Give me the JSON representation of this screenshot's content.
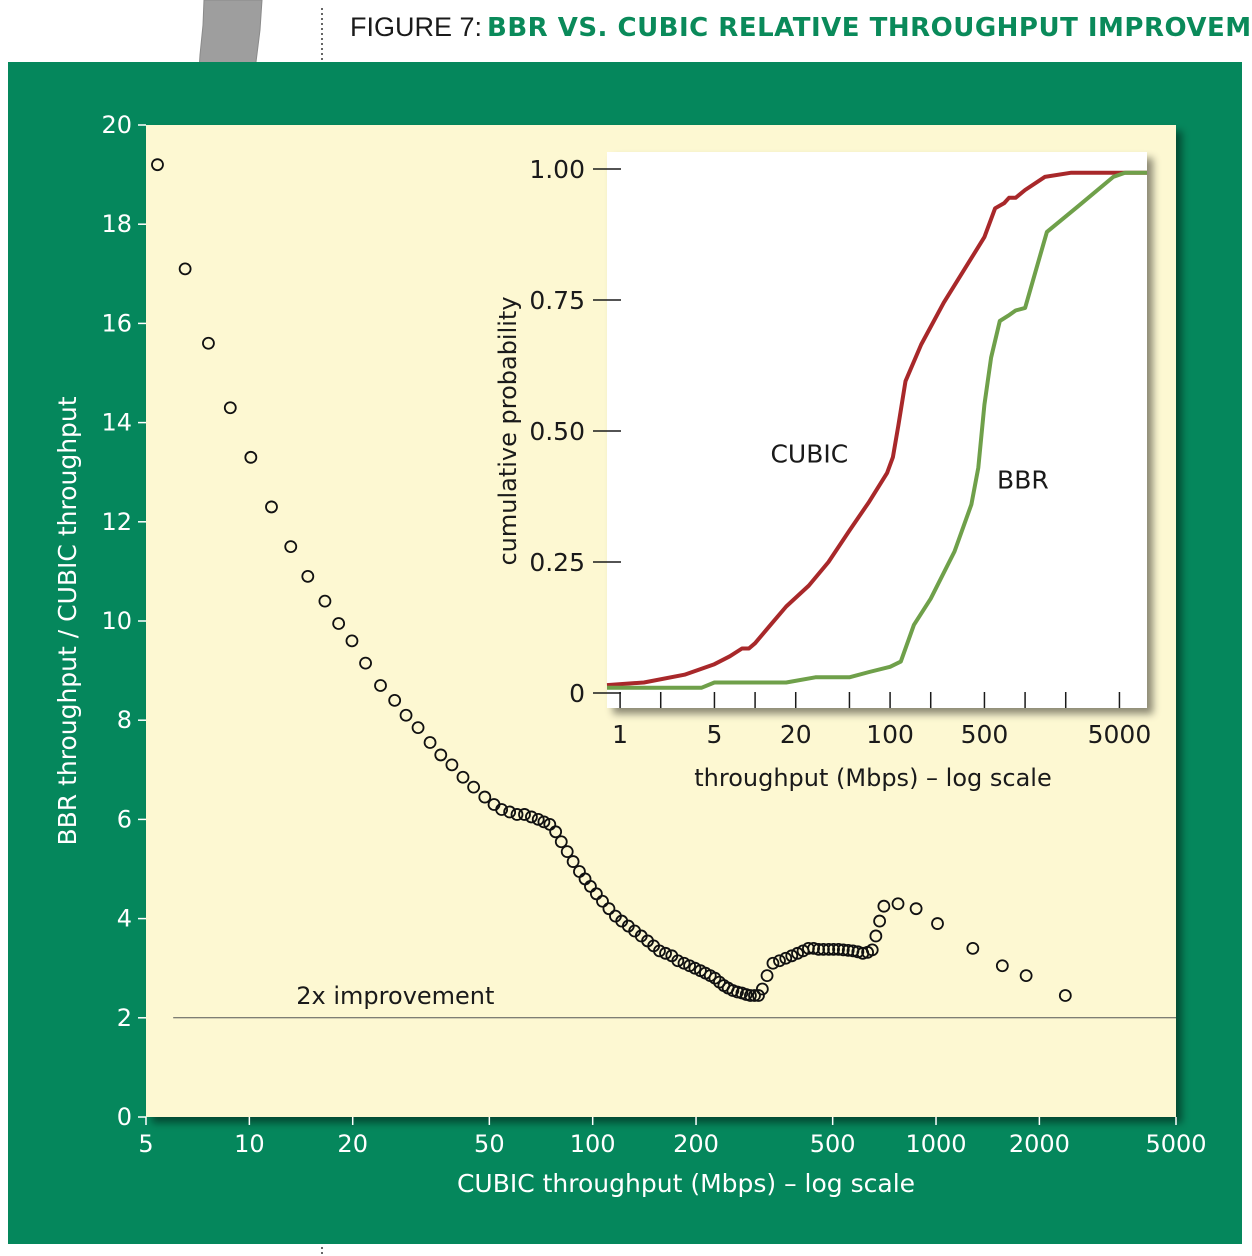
{
  "figure": {
    "label": "FIGURE 7:",
    "title": "BBR VS. CUBIC RELATIVE THROUGHPUT IMPROVEMENT"
  },
  "colors": {
    "frame": "#05875c",
    "plot_bg": "#fdf8d2",
    "title": "#0a8a5a",
    "cubic": "#a8282a",
    "bbr": "#6fa04a"
  },
  "chart_data": [
    {
      "type": "scatter",
      "xlabel": "CUBIC throughput (Mbps) – log scale",
      "ylabel": "BBR throughput / CUBIC throughput",
      "x_scale": "log",
      "xlim": [
        5,
        5000
      ],
      "ylim": [
        0,
        20
      ],
      "x_ticks": [
        5,
        10,
        20,
        50,
        100,
        200,
        500,
        1000,
        2000,
        5000
      ],
      "x_tick_labels": [
        "5",
        "10",
        "20",
        "50",
        "100",
        "200",
        "500",
        "1000",
        "2000",
        "5000"
      ],
      "y_ticks": [
        0,
        2,
        4,
        6,
        8,
        10,
        12,
        14,
        16,
        18,
        20
      ],
      "y_tick_labels": [
        "0",
        "2",
        "4",
        "6",
        "8",
        "10",
        "12",
        "14",
        "16",
        "18",
        "20"
      ],
      "reference_line": {
        "y": 2,
        "label": "2x improvement"
      },
      "points": [
        [
          5.4,
          19.2
        ],
        [
          6.5,
          17.1
        ],
        [
          7.6,
          15.6
        ],
        [
          8.8,
          14.3
        ],
        [
          10.1,
          13.3
        ],
        [
          11.6,
          12.3
        ],
        [
          13.2,
          11.5
        ],
        [
          14.8,
          10.9
        ],
        [
          16.6,
          10.4
        ],
        [
          18.2,
          9.95
        ],
        [
          19.9,
          9.6
        ],
        [
          21.8,
          9.15
        ],
        [
          24.1,
          8.7
        ],
        [
          26.5,
          8.4
        ],
        [
          28.6,
          8.1
        ],
        [
          31.0,
          7.85
        ],
        [
          33.6,
          7.55
        ],
        [
          36.1,
          7.3
        ],
        [
          38.9,
          7.1
        ],
        [
          41.9,
          6.85
        ],
        [
          45.0,
          6.65
        ],
        [
          48.5,
          6.45
        ],
        [
          51.6,
          6.3
        ],
        [
          54.3,
          6.2
        ],
        [
          57.3,
          6.15
        ],
        [
          60.2,
          6.1
        ],
        [
          63.3,
          6.1
        ],
        [
          66.3,
          6.05
        ],
        [
          69.4,
          6.0
        ],
        [
          72.1,
          5.95
        ],
        [
          75.0,
          5.9
        ],
        [
          78.0,
          5.75
        ],
        [
          81.0,
          5.55
        ],
        [
          84.3,
          5.35
        ],
        [
          87.7,
          5.15
        ],
        [
          91.5,
          4.95
        ],
        [
          95.0,
          4.8
        ],
        [
          98.5,
          4.65
        ],
        [
          102.5,
          4.5
        ],
        [
          106.8,
          4.35
        ],
        [
          111.5,
          4.2
        ],
        [
          116.5,
          4.05
        ],
        [
          121.5,
          3.95
        ],
        [
          127.0,
          3.85
        ],
        [
          132.5,
          3.75
        ],
        [
          138.5,
          3.65
        ],
        [
          144.5,
          3.55
        ],
        [
          150.5,
          3.45
        ],
        [
          156.5,
          3.35
        ],
        [
          163.0,
          3.3
        ],
        [
          170.0,
          3.25
        ],
        [
          177.0,
          3.15
        ],
        [
          184.5,
          3.1
        ],
        [
          191.5,
          3.05
        ],
        [
          198.5,
          3.0
        ],
        [
          206.0,
          2.95
        ],
        [
          213.0,
          2.9
        ],
        [
          220.0,
          2.85
        ],
        [
          227.0,
          2.8
        ],
        [
          234.0,
          2.72
        ],
        [
          241.0,
          2.65
        ],
        [
          248.0,
          2.6
        ],
        [
          256.0,
          2.55
        ],
        [
          264.0,
          2.52
        ],
        [
          272.0,
          2.5
        ],
        [
          280.0,
          2.47
        ],
        [
          288.0,
          2.45
        ],
        [
          296.0,
          2.45
        ],
        [
          304.0,
          2.45
        ],
        [
          312.0,
          2.58
        ],
        [
          322.0,
          2.85
        ],
        [
          335.0,
          3.1
        ],
        [
          350.0,
          3.15
        ],
        [
          365.0,
          3.2
        ],
        [
          380.0,
          3.25
        ],
        [
          395.0,
          3.3
        ],
        [
          410.0,
          3.35
        ],
        [
          425.0,
          3.4
        ],
        [
          440.0,
          3.4
        ],
        [
          455.0,
          3.38
        ],
        [
          470.0,
          3.38
        ],
        [
          487.0,
          3.38
        ],
        [
          503.0,
          3.38
        ],
        [
          520.0,
          3.38
        ],
        [
          537.0,
          3.37
        ],
        [
          555.0,
          3.36
        ],
        [
          573.0,
          3.35
        ],
        [
          592.0,
          3.33
        ],
        [
          612.0,
          3.3
        ],
        [
          632.0,
          3.32
        ],
        [
          652.0,
          3.37
        ],
        [
          668.0,
          3.65
        ],
        [
          685.0,
          3.95
        ],
        [
          705.0,
          4.25
        ],
        [
          775.0,
          4.3
        ],
        [
          875.0,
          4.2
        ],
        [
          1010.0,
          3.9
        ],
        [
          1280.0,
          3.4
        ],
        [
          1560.0,
          3.05
        ],
        [
          1830.0,
          2.85
        ],
        [
          2380.0,
          2.45
        ]
      ]
    },
    {
      "type": "line",
      "xlabel": "throughput (Mbps) – log scale",
      "ylabel": "cumulative probability",
      "x_scale": "log",
      "xlim": [
        0.8,
        8000
      ],
      "ylim": [
        0,
        1
      ],
      "x_ticks": [
        1,
        2,
        5,
        10,
        20,
        50,
        100,
        200,
        500,
        1000,
        2000,
        5000
      ],
      "x_tick_labels": [
        "1",
        "5",
        "20",
        "100",
        "500",
        "5000"
      ],
      "x_labeled_ticks": [
        1,
        5,
        20,
        100,
        500,
        5000
      ],
      "y_ticks": [
        0,
        0.25,
        0.5,
        0.75,
        1.0
      ],
      "y_tick_labels": [
        "0",
        "0.25",
        "0.50",
        "0.75",
        "1.00"
      ],
      "series": [
        {
          "name": "CUBIC",
          "points": [
            [
              0.8,
              0.015
            ],
            [
              1.5,
              0.02
            ],
            [
              3.0,
              0.035
            ],
            [
              5.0,
              0.055
            ],
            [
              6.5,
              0.07
            ],
            [
              8.0,
              0.085
            ],
            [
              9.0,
              0.085
            ],
            [
              10.0,
              0.095
            ],
            [
              13.0,
              0.13
            ],
            [
              17.0,
              0.165
            ],
            [
              25.0,
              0.205
            ],
            [
              35.0,
              0.25
            ],
            [
              50.0,
              0.31
            ],
            [
              70.0,
              0.365
            ],
            [
              95.0,
              0.42
            ],
            [
              105.0,
              0.45
            ],
            [
              115.0,
              0.51
            ],
            [
              130.0,
              0.595
            ],
            [
              170.0,
              0.665
            ],
            [
              250.0,
              0.745
            ],
            [
              400.0,
              0.83
            ],
            [
              500.0,
              0.87
            ],
            [
              600.0,
              0.925
            ],
            [
              700.0,
              0.935
            ],
            [
              760.0,
              0.945
            ],
            [
              850.0,
              0.945
            ],
            [
              1000.0,
              0.96
            ],
            [
              1400.0,
              0.985
            ],
            [
              2200.0,
              0.993
            ],
            [
              8000.0,
              0.993
            ]
          ]
        },
        {
          "name": "BBR",
          "points": [
            [
              0.8,
              0.01
            ],
            [
              4.0,
              0.01
            ],
            [
              5.0,
              0.02
            ],
            [
              8.0,
              0.02
            ],
            [
              17.0,
              0.02
            ],
            [
              28.0,
              0.03
            ],
            [
              50.0,
              0.03
            ],
            [
              70.0,
              0.04
            ],
            [
              100.0,
              0.05
            ],
            [
              120.0,
              0.06
            ],
            [
              150.0,
              0.13
            ],
            [
              200.0,
              0.18
            ],
            [
              300.0,
              0.27
            ],
            [
              400.0,
              0.36
            ],
            [
              450.0,
              0.43
            ],
            [
              500.0,
              0.55
            ],
            [
              560.0,
              0.64
            ],
            [
              650.0,
              0.71
            ],
            [
              750.0,
              0.72
            ],
            [
              850.0,
              0.73
            ],
            [
              1000.0,
              0.735
            ],
            [
              1450.0,
              0.88
            ],
            [
              2500.0,
              0.93
            ],
            [
              4500.0,
              0.985
            ],
            [
              5500.0,
              0.993
            ],
            [
              8000.0,
              0.993
            ]
          ]
        }
      ]
    }
  ]
}
